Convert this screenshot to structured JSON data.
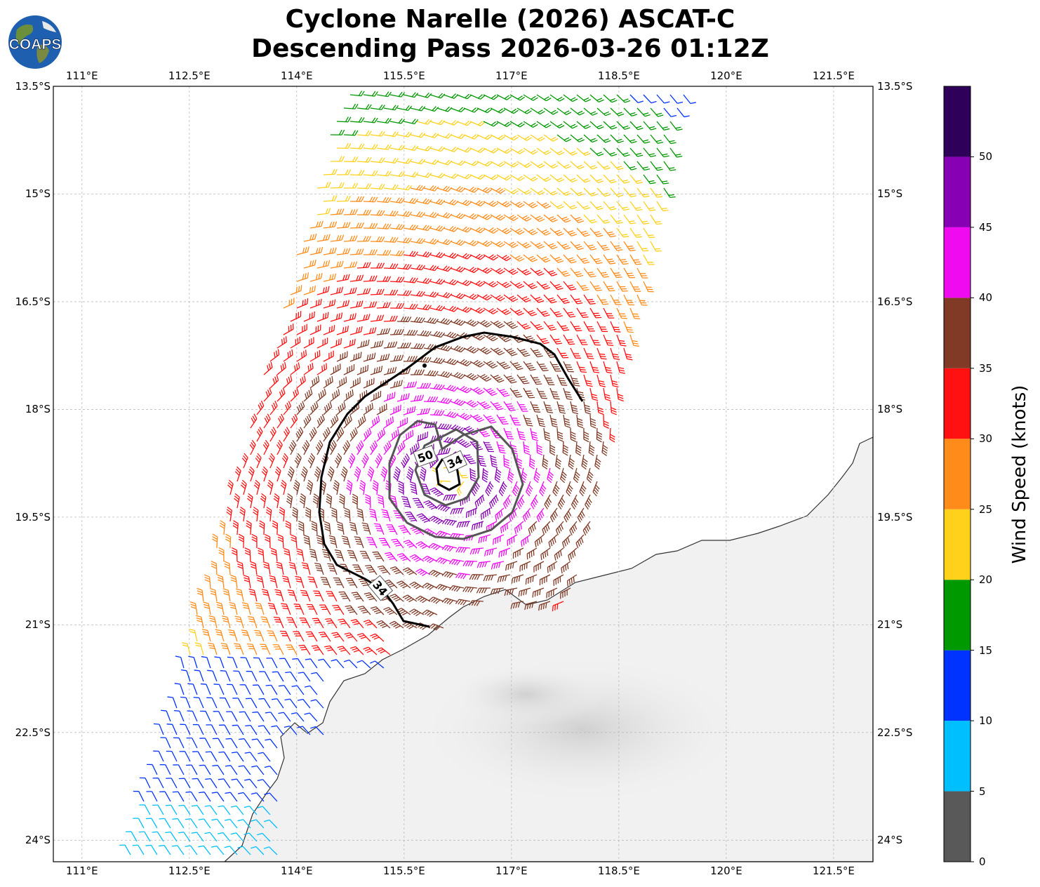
{
  "title": {
    "line1": "Cyclone Narelle (2026) ASCAT-C",
    "line2": "Descending Pass 2026-03-26 01:12Z"
  },
  "logo": {
    "text": "COAPS",
    "icon": "globe-icon"
  },
  "map": {
    "lon_range": [
      110.6,
      122.05
    ],
    "lat_range": [
      -24.3,
      -13.5
    ],
    "lon_ticks": [
      "111°E",
      "112.5°E",
      "114°E",
      "115.5°E",
      "117°E",
      "118.5°E",
      "120°E",
      "121.5°E"
    ],
    "lat_ticks": [
      "13.5°S",
      "15°S",
      "16.5°S",
      "18°S",
      "19.5°S",
      "21°S",
      "22.5°S",
      "24°S"
    ],
    "grid": true,
    "land_color": "#f2f2f2",
    "coast_color": "#333333",
    "wind_contours": [
      {
        "label": "34",
        "color": "#000000"
      },
      {
        "label": "50",
        "color": "#555555"
      },
      {
        "label": "34",
        "color": "#000000"
      }
    ]
  },
  "colorbar": {
    "label": "Wind Speed (knots)",
    "bounds": [
      0,
      5,
      10,
      15,
      20,
      25,
      30,
      35,
      40,
      45,
      50,
      55
    ],
    "tick_labels": [
      "0",
      "5",
      "10",
      "15",
      "20",
      "25",
      "30",
      "35",
      "40",
      "45",
      "50"
    ],
    "colors": [
      "#595959",
      "#00bfff",
      "#0033ff",
      "#009900",
      "#ffd11a",
      "#ff8c1a",
      "#ff1111",
      "#803a26",
      "#f00af0",
      "#8800b3",
      "#2e0059"
    ]
  }
}
